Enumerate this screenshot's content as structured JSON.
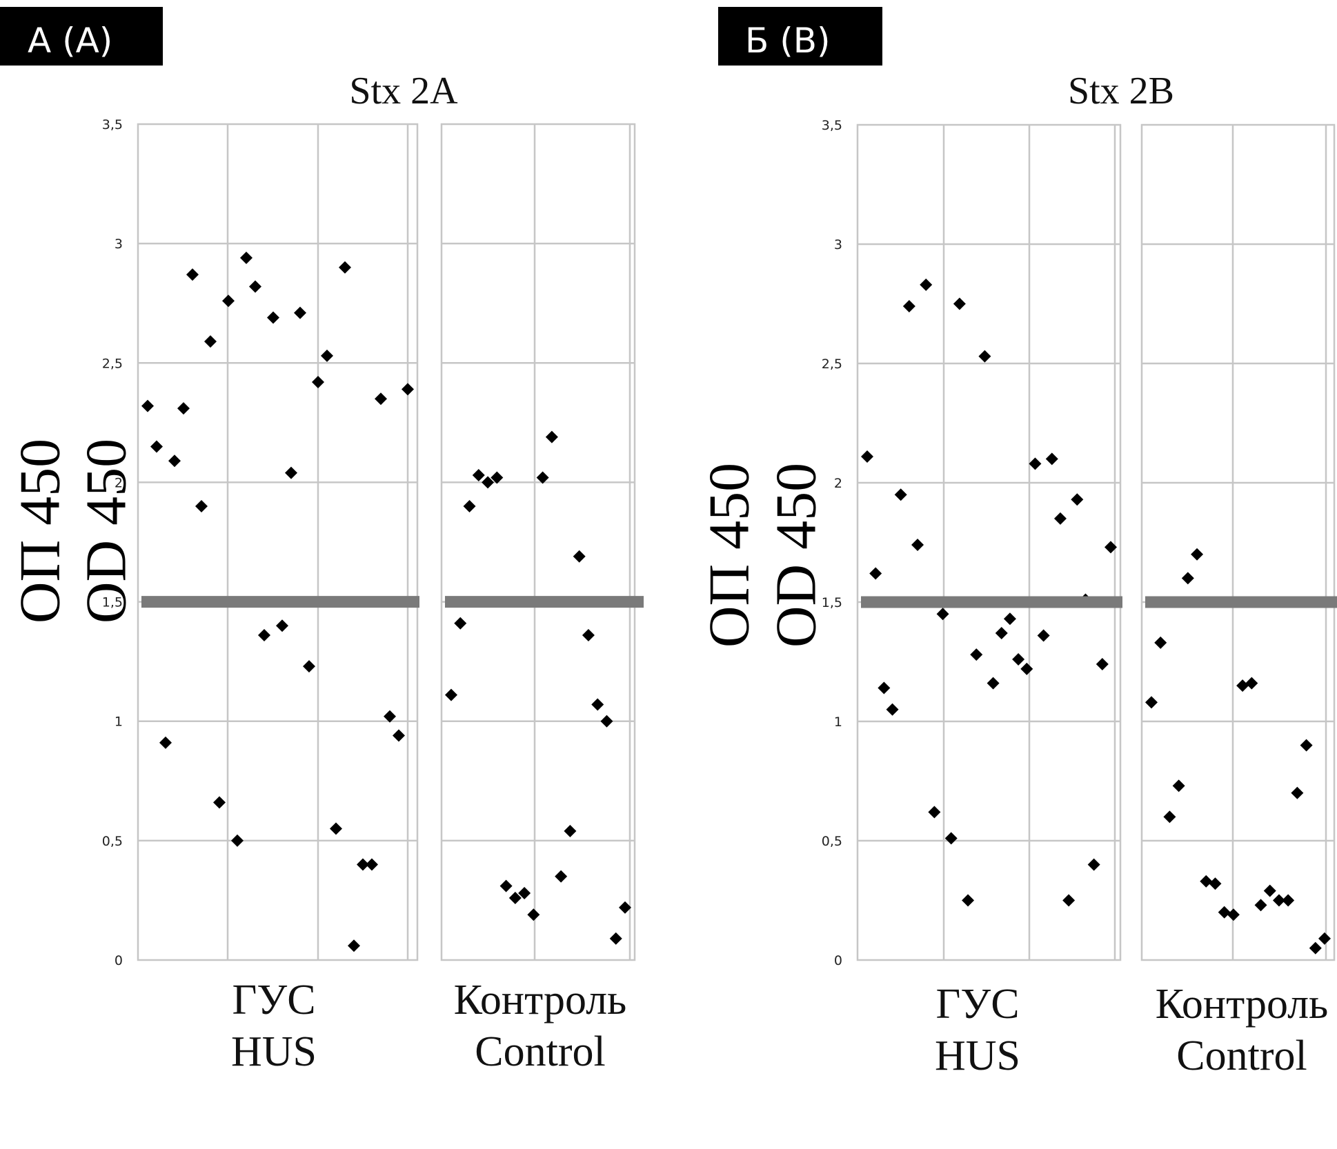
{
  "chart_data": [
    {
      "type": "scatter",
      "tag": "А (A)",
      "title": "Stx 2A",
      "ylabel": [
        "ОП 450",
        "OD 450"
      ],
      "ylim": [
        0,
        3.5
      ],
      "yticks": [
        "0",
        "0,5",
        "1",
        "1,5",
        "2",
        "2,5",
        "3",
        "3,5"
      ],
      "cutoff": 1.5,
      "groups": [
        {
          "label": [
            "ГУС",
            "HUS"
          ],
          "values": [
            2.32,
            2.15,
            0.91,
            2.09,
            2.31,
            2.87,
            1.9,
            2.59,
            0.66,
            2.76,
            0.5,
            2.94,
            2.82,
            1.36,
            2.69,
            1.4,
            2.04,
            2.71,
            1.23,
            2.42,
            2.53,
            0.55,
            2.9,
            0.06,
            0.4,
            0.4,
            2.35,
            1.02,
            0.94,
            2.39
          ]
        },
        {
          "label": [
            "Контроль",
            "Control"
          ],
          "values": [
            1.11,
            1.41,
            1.9,
            2.03,
            2.0,
            2.02,
            0.31,
            0.26,
            0.28,
            0.19,
            2.02,
            2.19,
            0.35,
            0.54,
            1.69,
            1.36,
            1.07,
            1.0,
            0.09,
            0.22
          ]
        }
      ]
    },
    {
      "type": "scatter",
      "tag": "Б (B)",
      "title": "Stx 2B",
      "ylabel": [
        "ОП 450",
        "OD 450"
      ],
      "ylim": [
        0,
        3.5
      ],
      "yticks": [
        "0",
        "0,5",
        "1",
        "1,5",
        "2",
        "2,5",
        "3",
        "3,5"
      ],
      "cutoff": 1.5,
      "groups": [
        {
          "label": [
            "ГУС",
            "HUS"
          ],
          "values": [
            2.11,
            1.62,
            1.14,
            1.05,
            1.95,
            2.74,
            1.74,
            2.83,
            0.62,
            1.45,
            0.51,
            2.75,
            0.25,
            1.28,
            2.53,
            1.16,
            1.37,
            1.43,
            1.26,
            1.22,
            2.08,
            1.36,
            2.1,
            1.85,
            0.25,
            1.93,
            1.51,
            0.4,
            1.24,
            1.73
          ]
        },
        {
          "label": [
            "Контроль",
            "Control"
          ],
          "values": [
            1.08,
            1.33,
            0.6,
            0.73,
            1.6,
            1.7,
            0.33,
            0.32,
            0.2,
            0.19,
            1.15,
            1.16,
            0.23,
            0.29,
            0.25,
            0.25,
            0.7,
            0.9,
            0.05,
            0.09
          ]
        }
      ]
    }
  ]
}
